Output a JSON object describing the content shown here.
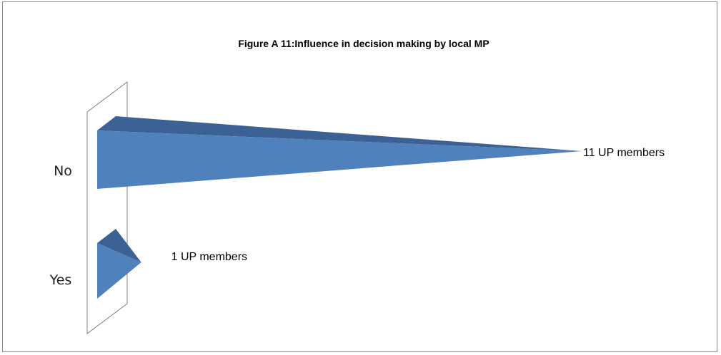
{
  "chart_data": {
    "type": "bar",
    "subtype": "horizontal-3d-pyramid",
    "title": "Figure A 11:Influence in decision making by local MP",
    "categories": [
      "No",
      "Yes"
    ],
    "values": [
      11,
      1
    ],
    "data_labels": [
      "11 UP members",
      "1 UP members"
    ],
    "xlim": [
      0,
      11
    ],
    "xlabel": "",
    "ylabel": "",
    "grid": false,
    "legend": "none",
    "colors": {
      "front": "#4f81bd",
      "top": "#3b6195",
      "wall": "#ffffff",
      "wall_stroke": "#7f7f7f"
    }
  }
}
